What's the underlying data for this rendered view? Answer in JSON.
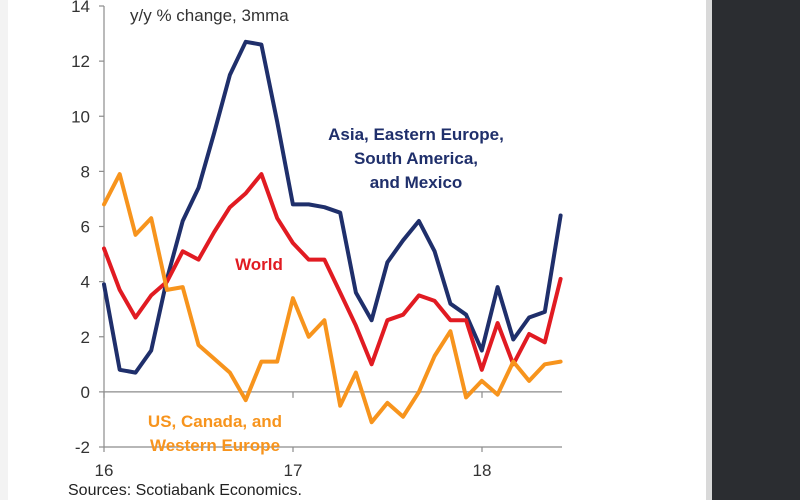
{
  "chart_data": {
    "type": "line",
    "title": "y/y % change, 3mma",
    "ylim": [
      -2,
      14
    ],
    "yticks": [
      -2,
      0,
      2,
      4,
      6,
      8,
      10,
      12,
      14
    ],
    "xlim": [
      2016.0,
      2018.6
    ],
    "xticks": [
      {
        "value": 2016,
        "label": "16"
      },
      {
        "value": 2017,
        "label": "17"
      },
      {
        "value": 2018,
        "label": "18"
      }
    ],
    "series": [
      {
        "name": "Asia, Eastern Europe, South America, and Mexico",
        "label_lines": [
          "Asia, Eastern Europe,",
          "South America,",
          "and Mexico"
        ],
        "color": "#1f2f6b",
        "values": [
          3.9,
          0.8,
          0.7,
          1.5,
          4.1,
          6.2,
          7.4,
          9.4,
          11.5,
          12.7,
          12.6,
          9.8,
          6.8,
          6.8,
          6.7,
          6.5,
          3.6,
          2.6,
          4.7,
          5.5,
          6.2,
          5.1,
          3.2,
          2.8,
          1.5,
          3.8,
          1.9,
          2.7,
          2.9,
          6.4
        ]
      },
      {
        "name": "World",
        "label_lines": [
          "World"
        ],
        "color": "#e11b22",
        "values": [
          5.2,
          3.7,
          2.7,
          3.5,
          4.0,
          5.1,
          4.8,
          5.8,
          6.7,
          7.2,
          7.9,
          6.3,
          5.4,
          4.8,
          4.8,
          3.6,
          2.4,
          1.0,
          2.6,
          2.8,
          3.5,
          3.3,
          2.6,
          2.6,
          0.8,
          2.5,
          1.0,
          2.1,
          1.8,
          4.1
        ]
      },
      {
        "name": "US, Canada, and Western Europe",
        "label_lines": [
          "US, Canada, and",
          "Western Europe"
        ],
        "color": "#f7941d",
        "values": [
          6.8,
          7.9,
          5.7,
          6.3,
          3.7,
          3.8,
          1.7,
          1.2,
          0.7,
          -0.3,
          1.1,
          1.1,
          3.4,
          2.0,
          2.6,
          -0.5,
          0.7,
          -1.1,
          -0.4,
          -0.9,
          0.0,
          1.3,
          2.2,
          -0.2,
          0.4,
          -0.1,
          1.1,
          0.4,
          1.0,
          1.1
        ]
      }
    ],
    "x_start": 2016.0,
    "x_step": 0.0833,
    "grid": false
  },
  "source": "Sources: Scotiabank Economics."
}
